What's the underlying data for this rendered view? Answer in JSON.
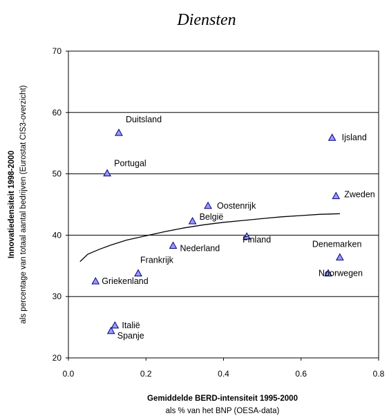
{
  "chart_data": {
    "type": "scatter",
    "title": "Diensten",
    "xlabel": "Gemiddelde BERD-intensiteit 1995-2000",
    "xlabel_sub": "als % van het BNP (OESA-data)",
    "ylabel": "Innovatiedensiteit 1998-2000",
    "ylabel_sub": "als percentage van totaal aantal bedrijven (Eurostat CIS3-overzicht)",
    "xlim": [
      0,
      0.8
    ],
    "ylim": [
      20,
      70
    ],
    "x_ticks": [
      "0.0",
      "0.2",
      "0.4",
      "0.6",
      "0.8"
    ],
    "y_ticks": [
      "20",
      "30",
      "40",
      "50",
      "60",
      "70"
    ],
    "grid": "horizontal",
    "marker": "triangle",
    "marker_color": "#9999ff",
    "points": [
      {
        "label": "Duitsland",
        "x": 0.13,
        "y": 56.7
      },
      {
        "label": "Portugal",
        "x": 0.1,
        "y": 50.1
      },
      {
        "label": "Ijsland",
        "x": 0.68,
        "y": 55.9
      },
      {
        "label": "Zweden",
        "x": 0.69,
        "y": 46.4
      },
      {
        "label": "Oostenrijk",
        "x": 0.36,
        "y": 44.8
      },
      {
        "label": "België",
        "x": 0.32,
        "y": 42.3
      },
      {
        "label": "Nederland",
        "x": 0.27,
        "y": 38.3
      },
      {
        "label": "Finland",
        "x": 0.46,
        "y": 39.8
      },
      {
        "label": "Denemarken",
        "x": 0.7,
        "y": 36.4
      },
      {
        "label": "Noorwegen",
        "x": 0.67,
        "y": 33.8
      },
      {
        "label": "Frankrijk",
        "x": 0.18,
        "y": 33.8
      },
      {
        "label": "Griekenland",
        "x": 0.07,
        "y": 32.5
      },
      {
        "label": "Italië",
        "x": 0.12,
        "y": 25.3
      },
      {
        "label": "Spanje",
        "x": 0.11,
        "y": 24.4
      }
    ],
    "trend_line": {
      "x": [
        0.03,
        0.05,
        0.08,
        0.11,
        0.15,
        0.2,
        0.25,
        0.3,
        0.35,
        0.4,
        0.45,
        0.5,
        0.55,
        0.6,
        0.65,
        0.7
      ],
      "y": [
        35.7,
        36.9,
        37.7,
        38.4,
        39.2,
        39.9,
        40.6,
        41.2,
        41.7,
        42.1,
        42.4,
        42.7,
        43.0,
        43.2,
        43.4,
        43.5
      ]
    }
  }
}
